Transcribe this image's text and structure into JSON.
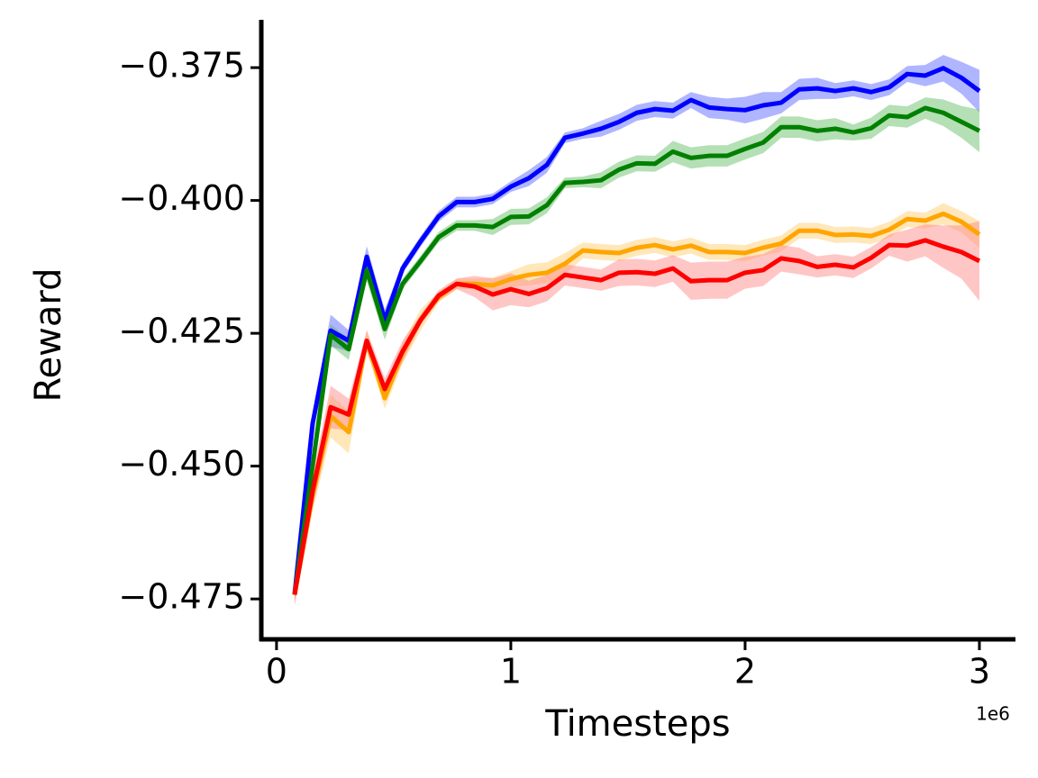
{
  "chart_data": {
    "type": "line",
    "x_label": "Timesteps",
    "y_label": "Reward",
    "x_offset_label": "1e6",
    "x": [
      0.077,
      0.154,
      0.231,
      0.308,
      0.385,
      0.462,
      0.538,
      0.615,
      0.692,
      0.769,
      0.846,
      0.923,
      1.0,
      1.077,
      1.154,
      1.231,
      1.308,
      1.385,
      1.462,
      1.538,
      1.615,
      1.692,
      1.769,
      1.846,
      1.923,
      2.0,
      2.077,
      2.154,
      2.231,
      2.308,
      2.385,
      2.462,
      2.538,
      2.615,
      2.692,
      2.769,
      2.846,
      2.923,
      3.0
    ],
    "series": [
      {
        "color": "#0000ff",
        "band_color": "#4d5cff",
        "values": [
          -0.4742,
          -0.442,
          -0.4245,
          -0.4264,
          -0.4106,
          -0.4225,
          -0.4128,
          -0.4077,
          -0.403,
          -0.4003,
          -0.4003,
          -0.3997,
          -0.3974,
          -0.3958,
          -0.3933,
          -0.3882,
          -0.3874,
          -0.3865,
          -0.3852,
          -0.3835,
          -0.3828,
          -0.3831,
          -0.3811,
          -0.3825,
          -0.3828,
          -0.383,
          -0.3821,
          -0.3816,
          -0.3791,
          -0.3789,
          -0.3794,
          -0.3789,
          -0.3796,
          -0.3787,
          -0.3762,
          -0.3765,
          -0.3751,
          -0.3769,
          -0.3794
        ],
        "errors": [
          0.001,
          0.002,
          0.003,
          0.002,
          0.002,
          0.002,
          0.001,
          0.001,
          0.001,
          0.001,
          0.001,
          0.001,
          0.001,
          0.0015,
          0.0015,
          0.001,
          0.001,
          0.0015,
          0.0015,
          0.0015,
          0.0015,
          0.0015,
          0.0015,
          0.002,
          0.002,
          0.0025,
          0.0025,
          0.002,
          0.002,
          0.002,
          0.0015,
          0.0015,
          0.0015,
          0.0015,
          0.0015,
          0.002,
          0.0025,
          0.003,
          0.004
        ]
      },
      {
        "color": "#008000",
        "band_color": "#5cb85c",
        "values": [
          -0.4742,
          -0.4499,
          -0.4253,
          -0.428,
          -0.4131,
          -0.4242,
          -0.4157,
          -0.4114,
          -0.4069,
          -0.4047,
          -0.4047,
          -0.405,
          -0.4031,
          -0.403,
          -0.4009,
          -0.3967,
          -0.3965,
          -0.3962,
          -0.3942,
          -0.393,
          -0.3931,
          -0.3908,
          -0.392,
          -0.3916,
          -0.3916,
          -0.3903,
          -0.3891,
          -0.3862,
          -0.3862,
          -0.3869,
          -0.3865,
          -0.3872,
          -0.3864,
          -0.384,
          -0.3843,
          -0.3826,
          -0.3835,
          -0.3852,
          -0.3869
        ],
        "errors": [
          0.001,
          0.002,
          0.002,
          0.002,
          0.002,
          0.002,
          0.001,
          0.001,
          0.001,
          0.001,
          0.001,
          0.0015,
          0.0015,
          0.0015,
          0.0015,
          0.001,
          0.001,
          0.0015,
          0.0015,
          0.0015,
          0.0015,
          0.002,
          0.002,
          0.002,
          0.002,
          0.002,
          0.002,
          0.002,
          0.002,
          0.002,
          0.002,
          0.0015,
          0.002,
          0.002,
          0.002,
          0.002,
          0.0025,
          0.003,
          0.004
        ]
      },
      {
        "color": "#ffa500",
        "band_color": "#ffc966",
        "values": [
          -0.4742,
          -0.4555,
          -0.4406,
          -0.4436,
          -0.4264,
          -0.4372,
          -0.4287,
          -0.4225,
          -0.4182,
          -0.4157,
          -0.4157,
          -0.416,
          -0.4148,
          -0.414,
          -0.4136,
          -0.4119,
          -0.4094,
          -0.4097,
          -0.4099,
          -0.4089,
          -0.4084,
          -0.4092,
          -0.4085,
          -0.4097,
          -0.4097,
          -0.4099,
          -0.4089,
          -0.4081,
          -0.4057,
          -0.4057,
          -0.4065,
          -0.4064,
          -0.4067,
          -0.4055,
          -0.4035,
          -0.4038,
          -0.4025,
          -0.404,
          -0.4064
        ],
        "errors": [
          0.002,
          0.003,
          0.004,
          0.004,
          0.002,
          0.002,
          0.002,
          0.002,
          0.001,
          0.001,
          0.001,
          0.0015,
          0.0015,
          0.002,
          0.002,
          0.002,
          0.0015,
          0.0015,
          0.0015,
          0.0015,
          0.0015,
          0.0015,
          0.0015,
          0.0015,
          0.0015,
          0.0015,
          0.0015,
          0.0015,
          0.0015,
          0.0015,
          0.0015,
          0.0015,
          0.0015,
          0.0015,
          0.0015,
          0.0015,
          0.002,
          0.002,
          0.0025
        ]
      },
      {
        "color": "#ff0000",
        "band_color": "#ff8080",
        "values": [
          -0.4742,
          -0.4547,
          -0.4389,
          -0.4403,
          -0.4264,
          -0.4355,
          -0.4284,
          -0.4225,
          -0.4179,
          -0.4157,
          -0.4162,
          -0.4177,
          -0.4167,
          -0.4176,
          -0.4165,
          -0.414,
          -0.4145,
          -0.415,
          -0.4136,
          -0.4135,
          -0.4138,
          -0.4128,
          -0.4152,
          -0.415,
          -0.415,
          -0.4136,
          -0.4131,
          -0.4109,
          -0.4114,
          -0.4125,
          -0.4121,
          -0.4126,
          -0.4108,
          -0.4084,
          -0.4085,
          -0.4075,
          -0.4087,
          -0.4097,
          -0.4114
        ],
        "errors": [
          0.002,
          0.003,
          0.004,
          0.003,
          0.002,
          0.002,
          0.002,
          0.001,
          0.001,
          0.001,
          0.002,
          0.003,
          0.003,
          0.0025,
          0.0025,
          0.002,
          0.002,
          0.002,
          0.0025,
          0.0025,
          0.0025,
          0.0025,
          0.0035,
          0.0035,
          0.0035,
          0.003,
          0.003,
          0.0025,
          0.0025,
          0.002,
          0.002,
          0.002,
          0.002,
          0.002,
          0.003,
          0.003,
          0.004,
          0.005,
          0.0075
        ]
      }
    ],
    "xlim": [
      -0.065,
      3.154
    ],
    "xticks": [
      0,
      1,
      2,
      3
    ],
    "ylim": [
      -0.4826,
      -0.366
    ],
    "yticks": [
      {
        "value": -0.475,
        "label": "−0.475"
      },
      {
        "value": -0.45,
        "label": "−0.450"
      },
      {
        "value": -0.425,
        "label": "−0.425"
      },
      {
        "value": -0.4,
        "label": "−0.400"
      },
      {
        "value": -0.375,
        "label": "−0.375"
      }
    ],
    "grid": false
  }
}
